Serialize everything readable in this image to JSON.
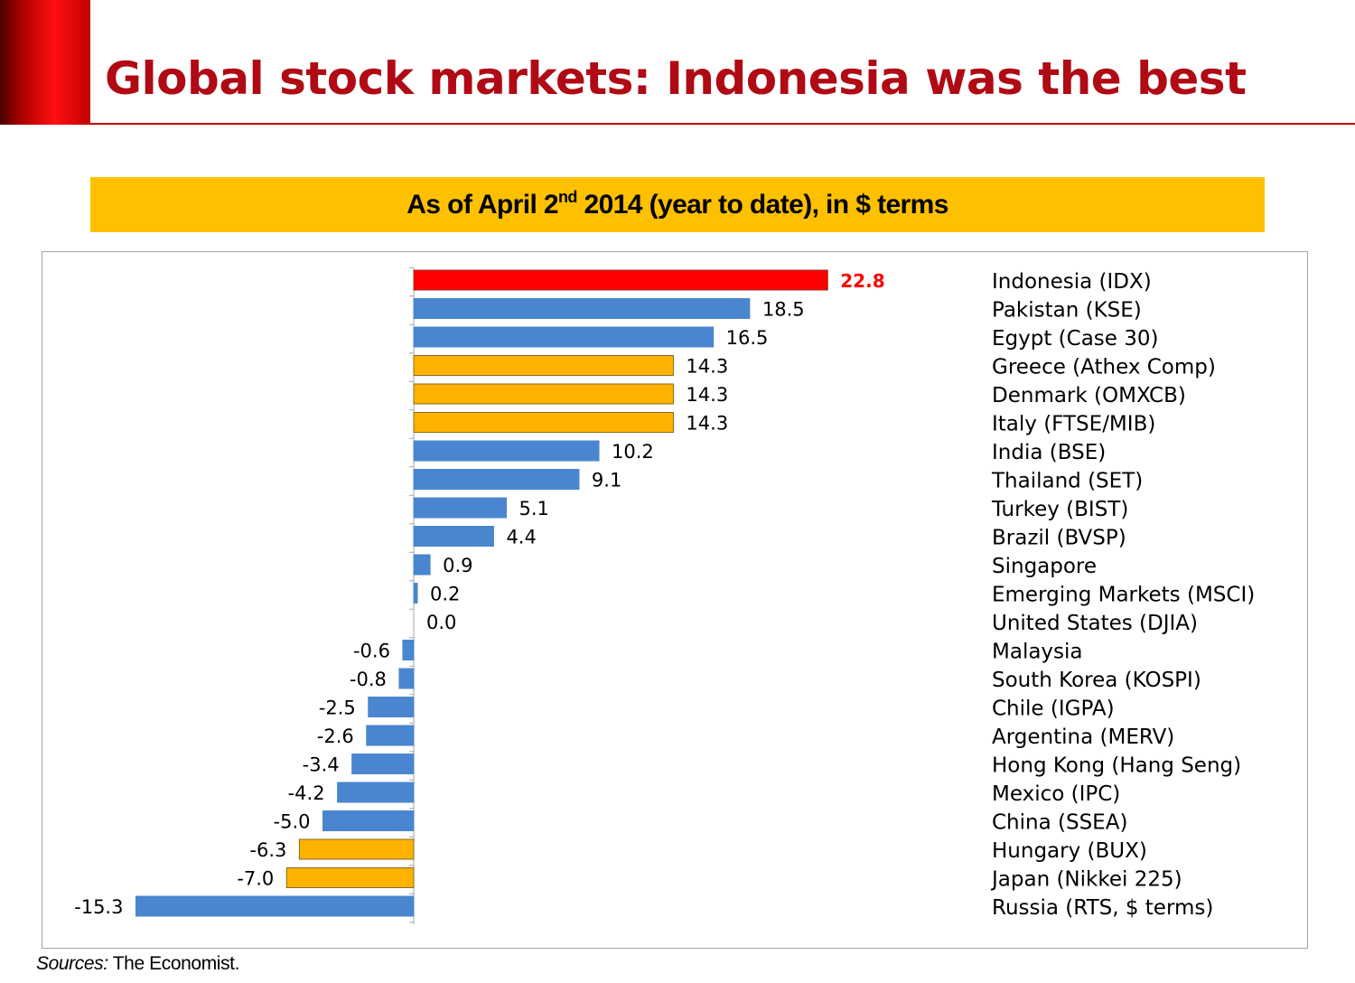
{
  "slide": {
    "title": "Global stock markets: Indonesia was the best",
    "subtitle_prefix": "As of April 2",
    "subtitle_sup": "nd",
    "subtitle_suffix": " 2014  (year to date), in $ terms",
    "source_label": "Sources:",
    "source_text": " The Economist."
  },
  "colors": {
    "brand_red": "#b00a14",
    "banner": "#ffc000",
    "highlight": "#ff0000",
    "blue": "#4a86cf",
    "orange": "#ffb300"
  },
  "chart_data": {
    "type": "bar",
    "orientation": "horizontal",
    "title": "",
    "xlabel": "",
    "ylabel": "",
    "categories": [
      "Indonesia (IDX)",
      "Pakistan (KSE)",
      "Egypt (Case 30)",
      "Greece (Athex Comp)",
      "Denmark (OMXCB)",
      "Italy (FTSE/MIB)",
      "India (BSE)",
      "Thailand (SET)",
      "Turkey (BIST)",
      "Brazil (BVSP)",
      "Singapore",
      "Emerging Markets (MSCI)",
      "United States (DJIA)",
      "Malaysia",
      "South Korea (KOSPI)",
      "Chile (IGPA)",
      "Argentina (MERV)",
      "Hong Kong (Hang Seng)",
      "Mexico (IPC)",
      "China (SSEA)",
      "Hungary (BUX)",
      "Japan (Nikkei 225)",
      "Russia (RTS, $ terms)"
    ],
    "values": [
      22.8,
      18.5,
      16.5,
      14.3,
      14.3,
      14.3,
      10.2,
      9.1,
      5.1,
      4.4,
      0.9,
      0.2,
      0.0,
      -0.6,
      -0.8,
      -2.5,
      -2.6,
      -3.4,
      -4.2,
      -5.0,
      -6.3,
      -7.0,
      -15.3
    ],
    "value_labels": [
      "22.8",
      "18.5",
      "16.5",
      "14.3",
      "14.3",
      "14.3",
      "10.2",
      "9.1",
      "5.1",
      "4.4",
      "0.9",
      "0.2",
      "0.0",
      "-0.6",
      "-0.8",
      "-2.5",
      "-2.6",
      "-3.4",
      "-4.2",
      "-5.0",
      "-6.3",
      "-7.0",
      "-15.3"
    ],
    "bar_colors": [
      "red",
      "blue",
      "blue",
      "orange",
      "orange",
      "orange",
      "blue",
      "blue",
      "blue",
      "blue",
      "blue",
      "blue",
      "blue",
      "blue",
      "blue",
      "blue",
      "blue",
      "blue",
      "blue",
      "blue",
      "orange",
      "orange",
      "blue"
    ],
    "xlim": [
      -15.3,
      22.8
    ],
    "grid": false,
    "legend": "none",
    "category_labels_position": "right"
  }
}
